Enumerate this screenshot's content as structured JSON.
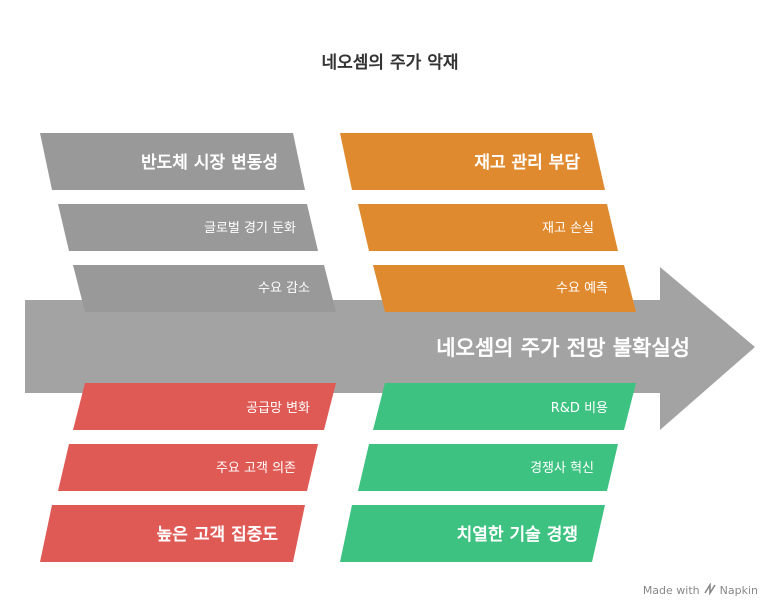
{
  "title": "네오셈의 주가 악재",
  "spine": {
    "label": "네오셈의 주가 전망 불확실성",
    "color": "#a3a3a3"
  },
  "categories": {
    "top_left": {
      "color": "#999999",
      "head": "반도체 시장 변동성",
      "causes": [
        "글로벌 경기 둔화",
        "수요 감소"
      ]
    },
    "top_right": {
      "color": "#e08a2f",
      "head": "재고 관리 부담",
      "causes": [
        "재고 손실",
        "수요 예측"
      ]
    },
    "bottom_left": {
      "color": "#e05a55",
      "head": "높은 고객 집중도",
      "causes": [
        "공급망 변화",
        "주요 고객 의존"
      ]
    },
    "bottom_right": {
      "color": "#3dc281",
      "head": "치열한 기술 경쟁",
      "causes": [
        "R&D 비용",
        "경쟁사 혁신"
      ]
    }
  },
  "watermark": {
    "prefix": "Made with",
    "brand": "Napkin",
    "icon": "napkin-logo-icon"
  }
}
